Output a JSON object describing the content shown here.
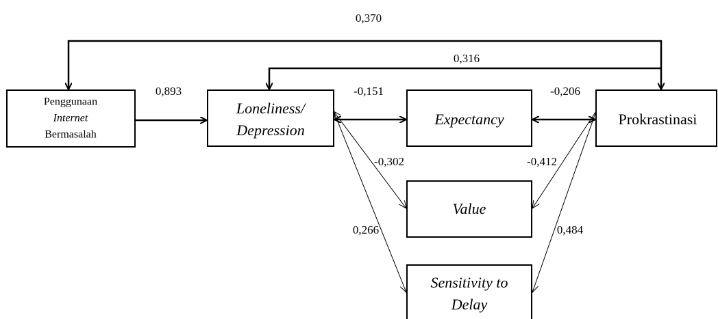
{
  "nodes": [
    {
      "lines": [
        "Penggunaan",
        "Internet",
        "Bermasalah"
      ]
    },
    {
      "lines": [
        "Loneliness/",
        "Depression"
      ]
    },
    {
      "lines": [
        "Expectancy"
      ]
    },
    {
      "lines": [
        "Prokrastinasi"
      ]
    },
    {
      "lines": [
        "Value"
      ]
    },
    {
      "lines": [
        "Sensitivity to",
        "Delay"
      ]
    }
  ],
  "edges": [
    {
      "label": "0,370"
    },
    {
      "label": "0,316"
    },
    {
      "label": "0,893"
    },
    {
      "label": "-0,151"
    },
    {
      "label": "-0,206"
    },
    {
      "label": "-0,302"
    },
    {
      "label": "0,266"
    },
    {
      "label": "-0,412"
    },
    {
      "label": "0,484"
    }
  ]
}
